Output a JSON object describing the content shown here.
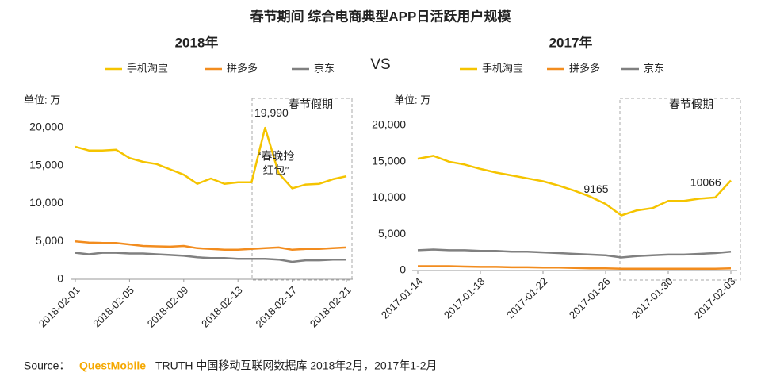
{
  "title": "春节期间  综合电商典型APP日活跃用户规模",
  "vs": "VS",
  "source": {
    "prefix": "Source：",
    "brand": "QuestMobile",
    "text": "TRUTH 中国移动互联网数据库 2018年2月，2017年1-2月"
  },
  "chart_data": [
    {
      "type": "line",
      "title": "2018年",
      "unit_label": "单位: 万",
      "period_label": "春节假期",
      "annotation": [
        "“春晚抢",
        "红包”"
      ],
      "categories": [
        "2018-02-01",
        null,
        null,
        null,
        "2018-02-05",
        null,
        null,
        null,
        "2018-02-09",
        null,
        null,
        null,
        "2018-02-13",
        null,
        null,
        null,
        "2018-02-17",
        null,
        null,
        null,
        "2018-02-21"
      ],
      "series": [
        {
          "name": "手机淘宝",
          "color": "#f5c400",
          "values": [
            17500,
            17000,
            17000,
            17100,
            16000,
            15500,
            15200,
            14500,
            13800,
            12600,
            13300,
            12600,
            12800,
            12800,
            19990,
            14000,
            12000,
            12500,
            12600,
            13200,
            13600
          ],
          "value_labels": [
            null,
            null,
            null,
            null,
            null,
            null,
            null,
            null,
            null,
            null,
            null,
            null,
            null,
            null,
            "19,990",
            null,
            null,
            null,
            null,
            null,
            null
          ]
        },
        {
          "name": "拼多多",
          "color": "#f28c1e",
          "values": [
            5000,
            4850,
            4800,
            4800,
            4600,
            4400,
            4350,
            4300,
            4400,
            4100,
            4000,
            3900,
            3900,
            4000,
            4100,
            4200,
            3900,
            4000,
            4000,
            4100,
            4200
          ]
        },
        {
          "name": "京东",
          "color": "#808080",
          "values": [
            3500,
            3300,
            3500,
            3500,
            3400,
            3400,
            3300,
            3200,
            3100,
            2900,
            2800,
            2800,
            2700,
            2700,
            2700,
            2600,
            2300,
            2500,
            2500,
            2600,
            2600
          ]
        }
      ],
      "ylim": [
        0,
        20000
      ],
      "yticks": [
        0,
        {
          "value": 5000,
          "label": "5,000"
        },
        {
          "value": 10000,
          "label": "10,000"
        },
        {
          "value": 15000,
          "label": "15,000"
        },
        {
          "value": 20000,
          "label": "20,000"
        }
      ]
    },
    {
      "type": "line",
      "title": "2017年",
      "unit_label": "单位: 万",
      "period_label": "春节假期",
      "categories": [
        "2017-01-14",
        null,
        null,
        null,
        "2017-01-18",
        null,
        null,
        null,
        "2017-01-22",
        null,
        null,
        null,
        "2017-01-26",
        null,
        null,
        null,
        "2017-01-30",
        null,
        null,
        null,
        "2017-02-03"
      ],
      "series": [
        {
          "name": "手机淘宝",
          "color": "#f5c400",
          "values": [
            15400,
            15800,
            15000,
            14600,
            14000,
            13500,
            13100,
            12700,
            12300,
            11700,
            11000,
            10200,
            9165,
            7600,
            8300,
            8600,
            9600,
            9600,
            9900,
            10066,
            12400
          ],
          "value_labels": [
            null,
            null,
            null,
            null,
            null,
            null,
            null,
            null,
            null,
            null,
            null,
            null,
            "9165",
            null,
            null,
            null,
            null,
            null,
            null,
            "10066",
            null
          ]
        },
        {
          "name": "拼多多",
          "color": "#f28c1e",
          "values": [
            600,
            600,
            600,
            550,
            500,
            500,
            450,
            450,
            400,
            400,
            350,
            300,
            300,
            250,
            250,
            250,
            250,
            250,
            250,
            250,
            300
          ]
        },
        {
          "name": "京东",
          "color": "#808080",
          "values": [
            2800,
            2900,
            2800,
            2800,
            2700,
            2700,
            2600,
            2600,
            2500,
            2400,
            2300,
            2200,
            2100,
            1800,
            2000,
            2100,
            2200,
            2200,
            2300,
            2400,
            2600
          ]
        }
      ],
      "ylim": [
        0,
        20000
      ],
      "yticks": [
        0,
        {
          "value": 5000,
          "label": "5,000"
        },
        {
          "value": 10000,
          "label": "10,000"
        },
        {
          "value": 15000,
          "label": "15,000"
        },
        {
          "value": 20000,
          "label": "20,000"
        }
      ]
    }
  ]
}
